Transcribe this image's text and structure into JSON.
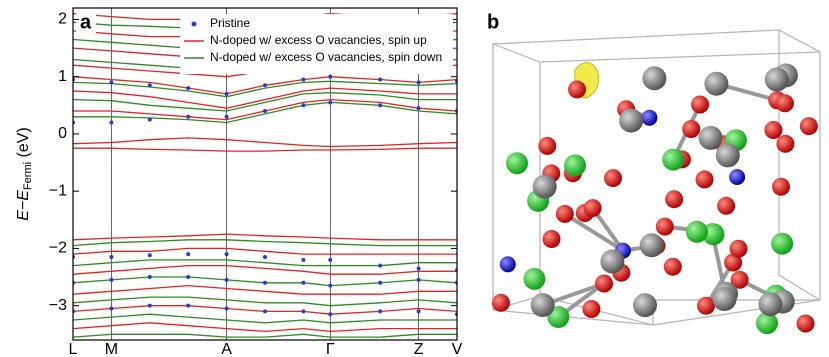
{
  "chart_data": {
    "type": "line",
    "panel_labels": [
      "a",
      "b"
    ],
    "y_label": {
      "main": "E−E",
      "sub": "Fermi",
      "unit": " (eV)"
    },
    "x": [
      0,
      1,
      2,
      3,
      4,
      5,
      6,
      6.7,
      8,
      9,
      10
    ],
    "xlim": [
      0,
      10
    ],
    "xticks": [
      {
        "value": 0,
        "label": "L"
      },
      {
        "value": 1,
        "label": "M"
      },
      {
        "value": 4,
        "label": "A"
      },
      {
        "value": 6.7,
        "label": "Γ"
      },
      {
        "value": 9,
        "label": "Z"
      },
      {
        "value": 10,
        "label": "V"
      }
    ],
    "ylim": [
      -3.6,
      2.2
    ],
    "yticks": [
      {
        "value": -3,
        "label": "−3"
      },
      {
        "value": -2,
        "label": "−2"
      },
      {
        "value": -1,
        "label": "−1"
      },
      0,
      1,
      2
    ],
    "legend": "top-right",
    "series": [
      {
        "name": "Pristine",
        "color": "#1f3fd6",
        "style": "dots",
        "bands": [
          [
            0.2,
            0.2,
            0.25,
            0.3,
            0.3,
            0.4,
            0.5,
            0.55,
            0.5,
            0.45,
            0.4
          ],
          [
            0.95,
            0.9,
            0.85,
            0.8,
            0.7,
            0.85,
            0.95,
            1.0,
            0.95,
            0.9,
            0.92
          ],
          [
            -2.15,
            -2.15,
            -2.12,
            -2.1,
            -2.1,
            -2.15,
            -2.2,
            -2.2,
            -2.3,
            -2.35,
            -2.38
          ],
          [
            -2.6,
            -2.55,
            -2.5,
            -2.5,
            -2.55,
            -2.6,
            -2.6,
            -2.65,
            -2.6,
            -2.55,
            -2.6
          ],
          [
            -3.1,
            -3.05,
            -3.0,
            -3.0,
            -3.05,
            -3.1,
            -3.1,
            -3.15,
            -3.1,
            -3.1,
            -3.15
          ]
        ]
      },
      {
        "name": "N-doped w/ excess O vacancies, spin up",
        "color": "#e0261f",
        "style": "line",
        "bands": [
          [
            -0.17,
            -0.15,
            -0.1,
            -0.07,
            -0.1,
            -0.15,
            -0.2,
            -0.22,
            -0.2,
            -0.17,
            -0.15
          ],
          [
            -0.25,
            -0.25,
            -0.27,
            -0.28,
            -0.3,
            -0.3,
            -0.28,
            -0.28,
            -0.27,
            -0.25,
            -0.25
          ],
          [
            0.4,
            0.4,
            0.35,
            0.3,
            0.25,
            0.4,
            0.55,
            0.6,
            0.55,
            0.45,
            0.4
          ],
          [
            0.75,
            0.72,
            0.65,
            0.55,
            0.45,
            0.6,
            0.75,
            0.8,
            0.75,
            0.7,
            0.7
          ],
          [
            1.0,
            0.95,
            0.9,
            0.8,
            0.7,
            0.85,
            0.95,
            1.0,
            0.95,
            0.9,
            0.95
          ],
          [
            1.2,
            1.15,
            1.1,
            1.05,
            1.0,
            1.1,
            1.15,
            1.2,
            1.15,
            1.15,
            1.2
          ],
          [
            1.5,
            1.45,
            1.4,
            1.35,
            1.3,
            1.4,
            1.45,
            1.5,
            1.45,
            1.45,
            1.5
          ],
          [
            1.8,
            1.75,
            1.7,
            1.7,
            1.65,
            1.7,
            1.75,
            1.8,
            1.75,
            1.75,
            1.8
          ],
          [
            2.1,
            2.05,
            2.0,
            2.0,
            1.95,
            2.0,
            2.05,
            2.1,
            2.05,
            2.05,
            2.1
          ],
          [
            -1.85,
            -1.82,
            -1.8,
            -1.78,
            -1.75,
            -1.78,
            -1.8,
            -1.82,
            -1.85,
            -1.85,
            -1.85
          ],
          [
            -2.1,
            -2.05,
            -2.05,
            -2.0,
            -2.0,
            -2.05,
            -2.1,
            -2.1,
            -2.1,
            -2.1,
            -2.1
          ],
          [
            -2.45,
            -2.4,
            -2.35,
            -2.3,
            -2.3,
            -2.35,
            -2.4,
            -2.45,
            -2.45,
            -2.4,
            -2.4
          ],
          [
            -2.8,
            -2.75,
            -2.7,
            -2.65,
            -2.7,
            -2.75,
            -2.8,
            -2.8,
            -2.8,
            -2.75,
            -2.75
          ],
          [
            -3.1,
            -3.05,
            -3.0,
            -3.0,
            -3.05,
            -3.1,
            -3.1,
            -3.15,
            -3.1,
            -3.05,
            -3.1
          ],
          [
            -3.4,
            -3.35,
            -3.3,
            -3.35,
            -3.4,
            -3.45,
            -3.4,
            -3.45,
            -3.4,
            -3.4,
            -3.4
          ]
        ]
      },
      {
        "name": "N-doped w/ excess O vacancies, spin down",
        "color": "#2e8b22",
        "style": "line",
        "bands": [
          [
            0.3,
            0.3,
            0.28,
            0.25,
            0.2,
            0.35,
            0.5,
            0.55,
            0.5,
            0.4,
            0.35
          ],
          [
            0.6,
            0.58,
            0.5,
            0.45,
            0.4,
            0.55,
            0.7,
            0.72,
            0.68,
            0.6,
            0.6
          ],
          [
            0.9,
            0.88,
            0.82,
            0.75,
            0.65,
            0.8,
            0.9,
            0.92,
            0.88,
            0.85,
            0.88
          ],
          [
            1.3,
            1.25,
            1.2,
            1.15,
            1.1,
            1.2,
            1.25,
            1.3,
            1.25,
            1.25,
            1.3
          ],
          [
            1.65,
            1.6,
            1.55,
            1.5,
            1.5,
            1.55,
            1.6,
            1.65,
            1.6,
            1.6,
            1.65
          ],
          [
            1.95,
            1.9,
            1.88,
            1.85,
            1.85,
            1.88,
            1.9,
            1.95,
            1.9,
            1.9,
            1.95
          ],
          [
            -1.95,
            -1.9,
            -1.88,
            -1.85,
            -1.85,
            -1.88,
            -1.9,
            -1.92,
            -1.95,
            -1.95,
            -1.95
          ],
          [
            -2.3,
            -2.25,
            -2.2,
            -2.2,
            -2.2,
            -2.25,
            -2.3,
            -2.3,
            -2.3,
            -2.25,
            -2.25
          ],
          [
            -2.6,
            -2.55,
            -2.5,
            -2.5,
            -2.55,
            -2.6,
            -2.6,
            -2.65,
            -2.6,
            -2.55,
            -2.6
          ],
          [
            -2.95,
            -2.9,
            -2.85,
            -2.85,
            -2.9,
            -2.95,
            -2.95,
            -3.0,
            -2.95,
            -2.9,
            -2.95
          ],
          [
            -3.25,
            -3.2,
            -3.15,
            -3.2,
            -3.25,
            -3.3,
            -3.25,
            -3.3,
            -3.25,
            -3.25,
            -3.25
          ],
          [
            -3.55,
            -3.5,
            -3.5,
            -3.5,
            -3.55,
            -3.55,
            -3.5,
            -3.55,
            -3.55,
            -3.5,
            -3.5
          ]
        ]
      }
    ]
  }
}
